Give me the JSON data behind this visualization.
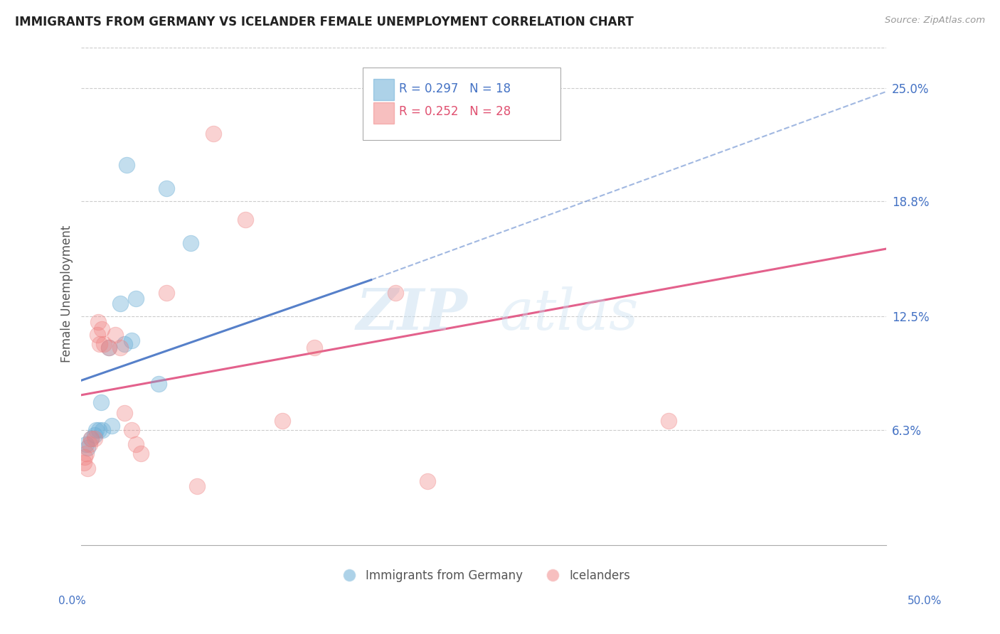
{
  "title": "IMMIGRANTS FROM GERMANY VS ICELANDER FEMALE UNEMPLOYMENT CORRELATION CHART",
  "source": "Source: ZipAtlas.com",
  "ylabel": "Female Unemployment",
  "ytick_labels": [
    "6.3%",
    "12.5%",
    "18.8%",
    "25.0%"
  ],
  "ytick_values": [
    6.3,
    12.5,
    18.8,
    25.0
  ],
  "xmin": 0.0,
  "xmax": 50.0,
  "ymin": 0.0,
  "ymax": 27.5,
  "blue_color": "#6baed6",
  "pink_color": "#f08080",
  "blue_line_color": "#4472c4",
  "pink_line_color": "#e05080",
  "germany_points": [
    [
      0.3,
      5.5
    ],
    [
      0.4,
      5.3
    ],
    [
      0.6,
      5.8
    ],
    [
      0.8,
      6.0
    ],
    [
      0.9,
      6.3
    ],
    [
      1.1,
      6.3
    ],
    [
      1.2,
      7.8
    ],
    [
      1.3,
      6.3
    ],
    [
      1.7,
      10.8
    ],
    [
      1.9,
      6.5
    ],
    [
      2.4,
      13.2
    ],
    [
      2.7,
      11.0
    ],
    [
      3.1,
      11.2
    ],
    [
      3.4,
      13.5
    ],
    [
      4.8,
      8.8
    ],
    [
      2.8,
      20.8
    ],
    [
      5.3,
      19.5
    ],
    [
      6.8,
      16.5
    ]
  ],
  "iceland_points": [
    [
      0.15,
      4.5
    ],
    [
      0.2,
      4.8
    ],
    [
      0.3,
      5.0
    ],
    [
      0.4,
      4.2
    ],
    [
      0.5,
      5.5
    ],
    [
      0.6,
      5.8
    ],
    [
      0.8,
      5.8
    ],
    [
      1.0,
      11.5
    ],
    [
      1.05,
      12.2
    ],
    [
      1.15,
      11.0
    ],
    [
      1.25,
      11.8
    ],
    [
      1.4,
      11.0
    ],
    [
      1.7,
      10.8
    ],
    [
      2.1,
      11.5
    ],
    [
      2.4,
      10.8
    ],
    [
      2.7,
      7.2
    ],
    [
      3.1,
      6.3
    ],
    [
      3.4,
      5.5
    ],
    [
      3.7,
      5.0
    ],
    [
      5.3,
      13.8
    ],
    [
      7.2,
      3.2
    ],
    [
      8.2,
      22.5
    ],
    [
      10.2,
      17.8
    ],
    [
      12.5,
      6.8
    ],
    [
      14.5,
      10.8
    ],
    [
      19.5,
      13.8
    ],
    [
      36.5,
      6.8
    ],
    [
      21.5,
      3.5
    ]
  ],
  "blue_line_solid": [
    [
      0.0,
      9.0
    ],
    [
      18.0,
      14.5
    ]
  ],
  "blue_line_dashed": [
    [
      18.0,
      14.5
    ],
    [
      50.0,
      24.8
    ]
  ],
  "pink_line": [
    [
      0.0,
      8.2
    ],
    [
      50.0,
      16.2
    ]
  ],
  "legend_r1": "R = 0.297",
  "legend_n1": "N = 18",
  "legend_r2": "R = 0.252",
  "legend_n2": "N = 28"
}
